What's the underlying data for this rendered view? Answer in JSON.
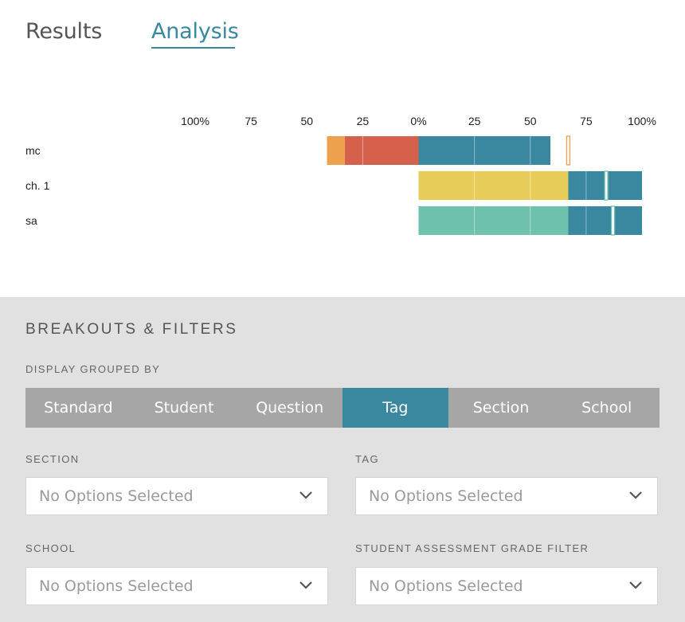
{
  "tabs": [
    {
      "label": "Results",
      "active": false
    },
    {
      "label": "Analysis",
      "active": true
    }
  ],
  "accent_color": "#3a87a0",
  "chart_data": {
    "type": "bar",
    "orientation": "horizontal",
    "stacked": "diverging",
    "x_ticks": [
      "100%",
      "75",
      "50",
      "25",
      "0%",
      "25",
      "50",
      "75",
      "100%"
    ],
    "xlim": [
      -100,
      100
    ],
    "rows": [
      {
        "label": "mc",
        "negative": [
          {
            "color": "#d5614d",
            "value": 33
          },
          {
            "color": "#eda14d",
            "value": 8
          }
        ],
        "positive": [
          {
            "color": "#3a87a0",
            "value": 59
          }
        ],
        "marker": {
          "value": 67,
          "color": "#eda14d"
        }
      },
      {
        "label": "ch. 1",
        "negative": [],
        "positive": [
          {
            "color": "#e8cc5a",
            "value": 67
          },
          {
            "color": "#3a87a0",
            "value": 33
          }
        ],
        "marker": {
          "value": 84,
          "color": "#6ec1ad"
        }
      },
      {
        "label": "sa",
        "negative": [],
        "positive": [
          {
            "color": "#6ec1ad",
            "value": 67
          },
          {
            "color": "#3a87a0",
            "value": 33
          }
        ],
        "marker": {
          "value": 87,
          "color": "#6ec1ad"
        }
      }
    ]
  },
  "panel": {
    "title": "BREAKOUTS & FILTERS",
    "group_label": "DISPLAY GROUPED BY",
    "group_options": [
      {
        "label": "Standard",
        "active": false
      },
      {
        "label": "Student",
        "active": false
      },
      {
        "label": "Question",
        "active": false
      },
      {
        "label": "Tag",
        "active": true
      },
      {
        "label": "Section",
        "active": false
      },
      {
        "label": "School",
        "active": false
      }
    ],
    "filters": [
      {
        "label": "SECTION",
        "value": "No Options Selected",
        "icon": "chevron-down-icon"
      },
      {
        "label": "TAG",
        "value": "No Options Selected",
        "icon": "chevron-down-icon"
      },
      {
        "label": "SCHOOL",
        "value": "No Options Selected",
        "icon": "chevron-down-icon"
      },
      {
        "label": "STUDENT ASSESSMENT GRADE FILTER",
        "value": "No Options Selected",
        "icon": "chevron-down-icon"
      }
    ]
  }
}
